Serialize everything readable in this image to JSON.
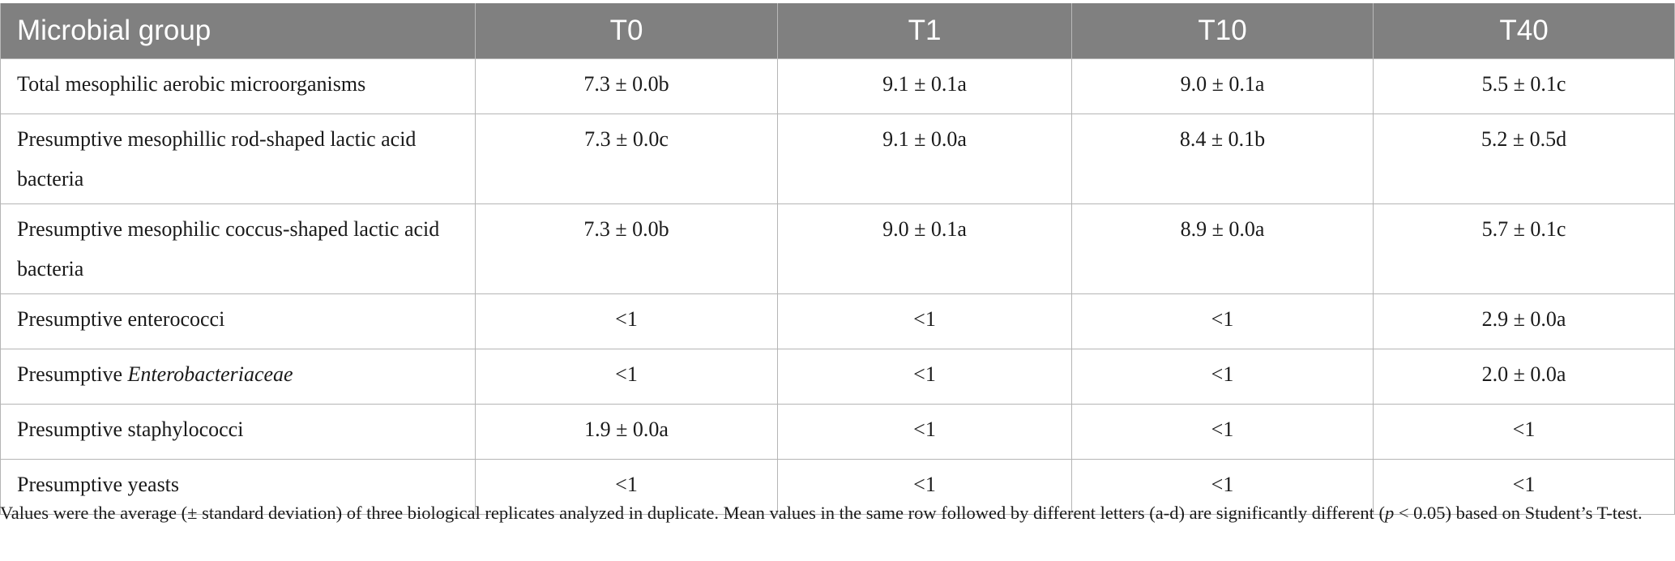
{
  "table": {
    "headers": [
      "Microbial group",
      "T0",
      "T1",
      "T10",
      "T40"
    ],
    "rows": [
      {
        "group": "Total mesophilic aerobic microorganisms",
        "values": [
          "7.3 ± 0.0b",
          "9.1 ± 0.1a",
          "9.0 ± 0.1a",
          "5.5 ± 0.1c"
        ]
      },
      {
        "group": "Presumptive mesophillic rod-shaped lactic acid bacteria",
        "values": [
          "7.3 ± 0.0c",
          "9.1 ± 0.0a",
          "8.4 ± 0.1b",
          "5.2 ± 0.5d"
        ]
      },
      {
        "group": "Presumptive mesophilic coccus-shaped lactic acid bacteria",
        "values": [
          "7.3 ± 0.0b",
          "9.0 ± 0.1a",
          "8.9 ± 0.0a",
          "5.7 ± 0.1c"
        ]
      },
      {
        "group": "Presumptive enterococci",
        "values": [
          "<1",
          "<1",
          "<1",
          "2.9 ± 0.0a"
        ]
      },
      {
        "group_prefix": "Presumptive ",
        "group_italic": "Enterobacteriaceae",
        "values": [
          "<1",
          "<1",
          "<1",
          "2.0 ± 0.0a"
        ]
      },
      {
        "group": "Presumptive staphylococci",
        "values": [
          "1.9 ± 0.0a",
          "<1",
          "<1",
          "<1"
        ]
      },
      {
        "group": "Presumptive yeasts",
        "values": [
          "<1",
          "<1",
          "<1",
          "<1"
        ]
      }
    ]
  },
  "footnote": {
    "part1": "Values were the average (± standard deviation) of three biological replicates analyzed in duplicate. Mean values in the same row followed by different letters (a-d) are significantly different (",
    "italic_p": "p",
    "part2": " < 0.05) based on Student’s T-test."
  }
}
